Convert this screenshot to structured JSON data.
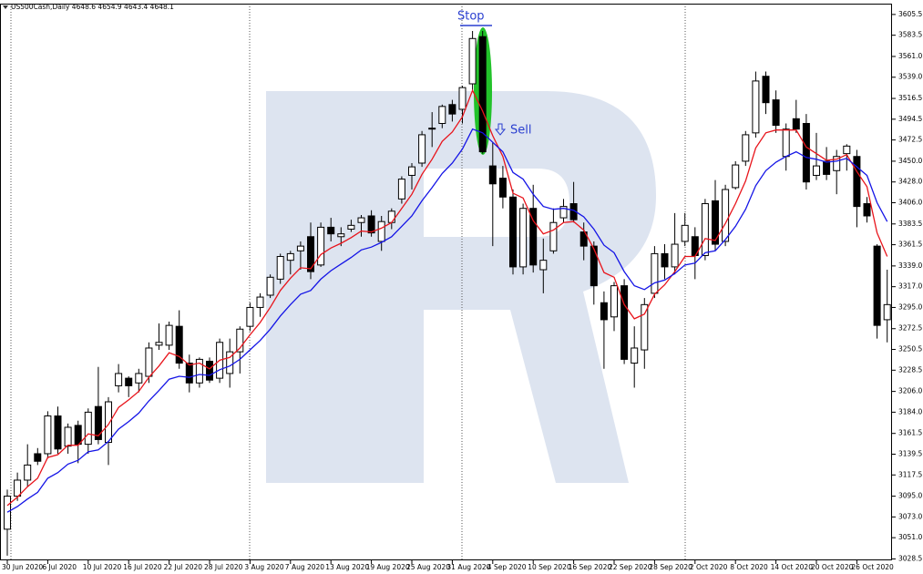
{
  "chart_data": {
    "type": "candlestick",
    "title": "US500Cash,Daily  4648.6 4654.9 4643.4 4648.1",
    "annotations": [
      "Stop",
      "Sell"
    ],
    "categories": [
      "30 Jun 2020",
      null,
      null,
      null,
      "6 Jul 2020",
      null,
      null,
      null,
      "10 Jul 2020",
      null,
      null,
      null,
      "16 Jul 2020",
      null,
      null,
      null,
      "22 Jul 2020",
      null,
      null,
      null,
      "28 Jul 2020",
      null,
      null,
      null,
      "3 Aug 2020",
      null,
      null,
      null,
      "7 Aug 2020",
      null,
      null,
      null,
      "13 Aug 2020",
      null,
      null,
      null,
      "19 Aug 2020",
      null,
      null,
      null,
      "25 Aug 2020",
      null,
      null,
      null,
      "31 Aug 2020",
      null,
      null,
      null,
      "4 Sep 2020",
      null,
      null,
      null,
      "10 Sep 2020",
      null,
      null,
      null,
      "16 Sep 2020",
      null,
      null,
      null,
      "22 Sep 2020",
      null,
      null,
      null,
      "28 Sep 2020",
      null,
      null,
      null,
      "2 Oct 2020",
      null,
      null,
      null,
      "8 Oct 2020",
      null,
      null,
      null,
      "14 Oct 2020",
      null,
      null,
      null,
      "20 Oct 2020",
      null,
      null,
      null,
      "26 Oct 2020",
      null,
      null,
      null
    ],
    "open": [
      3060,
      3095,
      3112,
      3140,
      3140,
      3180,
      3148,
      3170,
      3150,
      3190,
      3152,
      3212,
      3220,
      3215,
      3222,
      3255,
      3255,
      3275,
      3236,
      3215,
      3238,
      3220,
      3225,
      3248,
      3275,
      3295,
      3308,
      3325,
      3345,
      3355,
      3370,
      3340,
      3380,
      3370,
      3378,
      3385,
      3392,
      3365,
      3385,
      3410,
      3435,
      3448,
      3485,
      3490,
      3510,
      3505,
      3532,
      3582,
      3445,
      3432,
      3412,
      3338,
      3400,
      3335,
      3355,
      3390,
      3405,
      3375,
      3360,
      3300,
      3285,
      3318,
      3236,
      3250,
      3310,
      3352,
      3338,
      3365,
      3370,
      3350,
      3408,
      3365,
      3422,
      3450,
      3480,
      3540,
      3515,
      3455,
      3495,
      3490,
      3435,
      3450,
      3440,
      3458,
      3455,
      3405,
      3360,
      3282
    ],
    "high": [
      3102,
      3120,
      3150,
      3146,
      3185,
      3190,
      3172,
      3175,
      3188,
      3232,
      3200,
      3235,
      3222,
      3230,
      3258,
      3278,
      3280,
      3292,
      3245,
      3242,
      3242,
      3262,
      3262,
      3275,
      3300,
      3310,
      3330,
      3352,
      3355,
      3365,
      3385,
      3385,
      3390,
      3380,
      3388,
      3393,
      3398,
      3392,
      3400,
      3434,
      3448,
      3482,
      3502,
      3510,
      3515,
      3530,
      3588,
      3588,
      3470,
      3445,
      3420,
      3405,
      3425,
      3368,
      3400,
      3410,
      3428,
      3385,
      3365,
      3312,
      3322,
      3325,
      3275,
      3305,
      3360,
      3362,
      3395,
      3395,
      3380,
      3410,
      3430,
      3425,
      3450,
      3482,
      3545,
      3545,
      3525,
      3490,
      3515,
      3500,
      3480,
      3465,
      3462,
      3468,
      3462,
      3412,
      3362,
      3335
    ],
    "low": [
      3032,
      3090,
      3105,
      3128,
      3135,
      3140,
      3140,
      3130,
      3140,
      3150,
      3128,
      3205,
      3200,
      3205,
      3215,
      3250,
      3250,
      3230,
      3205,
      3210,
      3215,
      3215,
      3210,
      3225,
      3270,
      3285,
      3305,
      3320,
      3330,
      3335,
      3325,
      3338,
      3365,
      3360,
      3375,
      3370,
      3370,
      3355,
      3378,
      3405,
      3420,
      3444,
      3465,
      3485,
      3492,
      3490,
      3525,
      3458,
      3360,
      3400,
      3330,
      3330,
      3332,
      3310,
      3352,
      3385,
      3385,
      3345,
      3298,
      3230,
      3270,
      3235,
      3210,
      3230,
      3305,
      3325,
      3330,
      3360,
      3325,
      3345,
      3355,
      3360,
      3420,
      3445,
      3475,
      3500,
      3480,
      3440,
      3480,
      3420,
      3430,
      3430,
      3415,
      3440,
      3380,
      3385,
      3262,
      3258
    ],
    "close": [
      3095,
      3112,
      3128,
      3132,
      3180,
      3145,
      3168,
      3150,
      3184,
      3155,
      3195,
      3225,
      3212,
      3225,
      3252,
      3258,
      3276,
      3236,
      3215,
      3240,
      3218,
      3258,
      3248,
      3272,
      3295,
      3306,
      3327,
      3349,
      3352,
      3360,
      3333,
      3380,
      3373,
      3373,
      3382,
      3390,
      3374,
      3386,
      3397,
      3431,
      3444,
      3478,
      3484,
      3508,
      3500,
      3528,
      3580,
      3460,
      3426,
      3412,
      3338,
      3400,
      3340,
      3345,
      3385,
      3402,
      3388,
      3360,
      3318,
      3282,
      3318,
      3240,
      3252,
      3298,
      3352,
      3338,
      3362,
      3382,
      3350,
      3405,
      3362,
      3420,
      3446,
      3478,
      3535,
      3512,
      3488,
      3484,
      3484,
      3428,
      3445,
      3436,
      3455,
      3466,
      3402,
      3392,
      3276,
      3298
    ],
    "up_color": "#ffffff",
    "down_color": "#000000",
    "wick_color": "#000000",
    "lines": [
      {
        "color": "#e8141b",
        "values": [
          3085,
          3094,
          3105,
          3114,
          3136,
          3139,
          3149,
          3149,
          3161,
          3159,
          3171,
          3189,
          3197,
          3206,
          3221,
          3233,
          3247,
          3243,
          3234,
          3236,
          3230,
          3239,
          3242,
          3252,
          3266,
          3279,
          3295,
          3313,
          3326,
          3337,
          3336,
          3351,
          3358,
          3363,
          3369,
          3376,
          3375,
          3379,
          3385,
          3400,
          3415,
          3436,
          3452,
          3471,
          3481,
          3497,
          3525,
          3503,
          3477,
          3455,
          3416,
          3411,
          3387,
          3373,
          3377,
          3385,
          3386,
          3377,
          3357,
          3332,
          3327,
          3298,
          3283,
          3288,
          3309,
          3319,
          3333,
          3349,
          3349,
          3368,
          3366,
          3384,
          3405,
          3429,
          3464,
          3480,
          3483,
          3483,
          3483,
          3465,
          3458,
          3451,
          3452,
          3457,
          3439,
          3423,
          3374,
          3349
        ]
      },
      {
        "color": "#1414e6",
        "values": [
          3078,
          3084,
          3092,
          3099,
          3114,
          3120,
          3129,
          3133,
          3142,
          3144,
          3153,
          3166,
          3174,
          3183,
          3196,
          3207,
          3219,
          3222,
          3221,
          3224,
          3223,
          3229,
          3233,
          3240,
          3250,
          3260,
          3272,
          3286,
          3298,
          3309,
          3313,
          3325,
          3334,
          3341,
          3348,
          3356,
          3359,
          3364,
          3370,
          3381,
          3392,
          3408,
          3422,
          3437,
          3448,
          3463,
          3484,
          3480,
          3470,
          3460,
          3438,
          3431,
          3415,
          3402,
          3399,
          3400,
          3398,
          3391,
          3378,
          3361,
          3353,
          3333,
          3318,
          3314,
          3321,
          3324,
          3331,
          3340,
          3342,
          3353,
          3355,
          3367,
          3381,
          3399,
          3424,
          3440,
          3449,
          3455,
          3460,
          3454,
          3452,
          3449,
          3450,
          3453,
          3444,
          3435,
          3406,
          3386
        ]
      }
    ],
    "ylim": [
      3027,
      3616
    ],
    "yticks": [
      3605.5,
      3583.5,
      {
        "value": 3561,
        "label": "3561.0"
      },
      {
        "value": 3539,
        "label": "3539.0"
      },
      3516.5,
      3494.5,
      3472.5,
      {
        "value": 3450,
        "label": "3450.0"
      },
      {
        "value": 3428,
        "label": "3428.0"
      },
      {
        "value": 3406,
        "label": "3406.0"
      },
      3383.5,
      3361.5,
      {
        "value": 3339,
        "label": "3339.0"
      },
      {
        "value": 3317,
        "label": "3317.0"
      },
      {
        "value": 3295,
        "label": "3295.0"
      },
      3272.5,
      3250.5,
      3228.5,
      {
        "value": 3206,
        "label": "3206.0"
      },
      {
        "value": 3184,
        "label": "3184.0"
      },
      3161.5,
      3139.5,
      3117.5,
      {
        "value": 3095,
        "label": "3095.0"
      },
      {
        "value": 3073,
        "label": "3073.0"
      },
      {
        "value": 3051,
        "label": "3051.0"
      },
      3028.5
    ]
  }
}
